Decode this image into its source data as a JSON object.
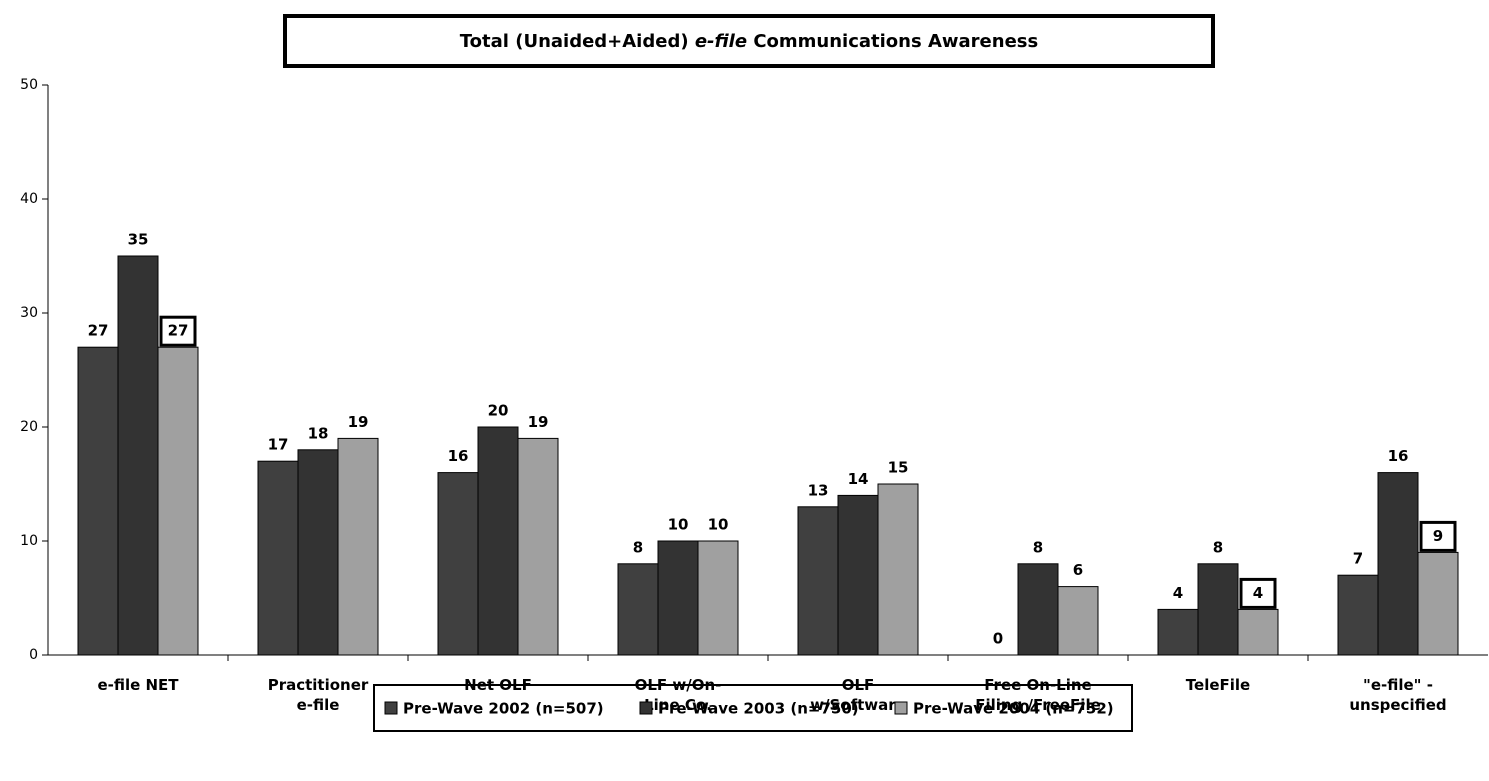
{
  "chart_data": {
    "type": "bar",
    "title": [
      "Total (Unaided+Aided) ",
      "e-file",
      " Communications Awareness"
    ],
    "categories": [
      [
        "e-file NET"
      ],
      [
        "Practitioner",
        "e-file"
      ],
      [
        "Net OLF"
      ],
      [
        "OLF      w/On-",
        "Line Co."
      ],
      [
        "OLF",
        "w/Software"
      ],
      [
        "Free On-Line",
        "Filing /FreeFile"
      ],
      [
        "TeleFile"
      ],
      [
        "\"e-file\" -",
        "unspecified"
      ]
    ],
    "series": [
      {
        "name": "Pre-Wave 2002 (n=507)",
        "color": "#404040",
        "values": [
          27,
          17,
          16,
          8,
          13,
          0,
          4,
          7
        ]
      },
      {
        "name": "Pre-Wave 2003 (n=750)",
        "color": "#333333",
        "values": [
          35,
          18,
          20,
          10,
          14,
          8,
          8,
          16
        ]
      },
      {
        "name": "Pre-Wave 2004 (n=752)",
        "color": "#a0a0a0",
        "values": [
          27,
          19,
          19,
          10,
          15,
          6,
          4,
          9
        ],
        "boxed": [
          0,
          6,
          7
        ]
      }
    ],
    "ylim": [
      0,
      50
    ],
    "yticks": [
      0,
      10,
      20,
      30,
      40,
      50
    ],
    "legend": "bottom"
  }
}
